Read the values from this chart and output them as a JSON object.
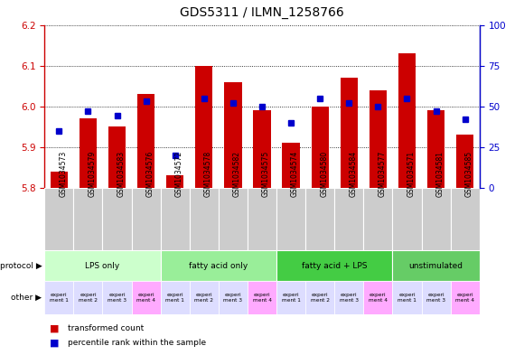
{
  "title": "GDS5311 / ILMN_1258766",
  "samples": [
    "GSM1034573",
    "GSM1034579",
    "GSM1034583",
    "GSM1034576",
    "GSM1034572",
    "GSM1034578",
    "GSM1034582",
    "GSM1034575",
    "GSM1034574",
    "GSM1034580",
    "GSM1034584",
    "GSM1034577",
    "GSM1034571",
    "GSM1034581",
    "GSM1034585"
  ],
  "transformed_count": [
    5.84,
    5.97,
    5.95,
    6.03,
    5.83,
    6.1,
    6.06,
    5.99,
    5.91,
    6.0,
    6.07,
    6.04,
    6.13,
    5.99,
    5.93
  ],
  "percentile_rank": [
    35,
    47,
    44,
    53,
    20,
    55,
    52,
    50,
    40,
    55,
    52,
    50,
    55,
    47,
    42
  ],
  "ylim_left": [
    5.8,
    6.2
  ],
  "ylim_right": [
    0,
    100
  ],
  "yticks_left": [
    5.8,
    5.9,
    6.0,
    6.1,
    6.2
  ],
  "yticks_right": [
    0,
    25,
    50,
    75,
    100
  ],
  "bar_color": "#cc0000",
  "dot_color": "#0000cc",
  "protocols": [
    {
      "label": "LPS only",
      "count": 4,
      "color": "#ccffcc"
    },
    {
      "label": "fatty acid only",
      "count": 4,
      "color": "#99ee99"
    },
    {
      "label": "fatty acid + LPS",
      "count": 4,
      "color": "#44cc44"
    },
    {
      "label": "unstimulated",
      "count": 3,
      "color": "#66cc66"
    }
  ],
  "other_labels": [
    "experi\nment 1",
    "experi\nment 2",
    "experi\nment 3",
    "experi\nment 4",
    "experi\nment 1",
    "experi\nment 2",
    "experi\nment 3",
    "experi\nment 4",
    "experi\nment 1",
    "experi\nment 2",
    "experi\nment 3",
    "experi\nment 4",
    "experi\nment 1",
    "experi\nment 3",
    "experi\nment 4"
  ],
  "other_colors": [
    "#ddddff",
    "#ddddff",
    "#ddddff",
    "#ffaaff",
    "#ddddff",
    "#ddddff",
    "#ddddff",
    "#ffaaff",
    "#ddddff",
    "#ddddff",
    "#ddddff",
    "#ffaaff",
    "#ddddff",
    "#ddddff",
    "#ffaaff"
  ],
  "sample_box_color": "#cccccc",
  "legend_items": [
    {
      "label": "transformed count",
      "color": "#cc0000"
    },
    {
      "label": "percentile rank within the sample",
      "color": "#0000cc"
    }
  ]
}
